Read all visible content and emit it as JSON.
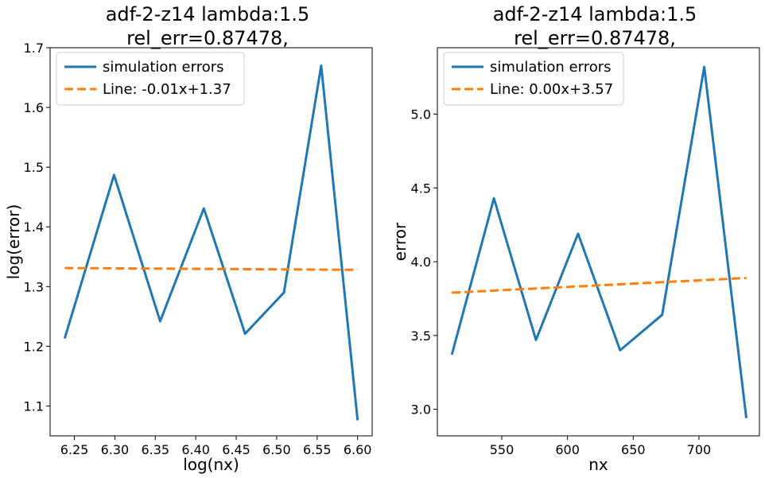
{
  "chart_data": [
    {
      "type": "line",
      "title": "adf-2-z14 lambda:1.5\nrel_err=0.87478,",
      "xlabel": "log(nx)",
      "ylabel": "log(error)",
      "xlim": [
        6.22,
        6.618
      ],
      "ylim": [
        1.05,
        1.7
      ],
      "xticks": [
        "6.25",
        "6.30",
        "6.35",
        "6.40",
        "6.45",
        "6.50",
        "6.55",
        "6.60"
      ],
      "yticks": [
        "1.1",
        "1.2",
        "1.3",
        "1.4",
        "1.5",
        "1.6",
        "1.7"
      ],
      "legend_position": "upper-left",
      "series": [
        {
          "name": "simulation errors",
          "color": "#1f77b4",
          "style": "solid",
          "x": [
            6.238,
            6.299,
            6.356,
            6.41,
            6.461,
            6.509,
            6.555,
            6.6
          ],
          "y": [
            1.213,
            1.487,
            1.242,
            1.431,
            1.221,
            1.29,
            1.67,
            1.076
          ]
        },
        {
          "name": "Line: -0.01x+1.37",
          "color": "#ff7f0e",
          "style": "dashed",
          "x": [
            6.238,
            6.6
          ],
          "y": [
            1.331,
            1.328
          ]
        }
      ]
    },
    {
      "type": "line",
      "title": "adf-2-z14 lambda:1.5\nrel_err=0.87478,",
      "xlabel": "nx",
      "ylabel": "error",
      "xlim": [
        501,
        746
      ],
      "ylim": [
        2.82,
        5.45
      ],
      "xticks": [
        "550",
        "600",
        "650",
        "700"
      ],
      "yticks": [
        "3.0",
        "3.5",
        "4.0",
        "4.5",
        "5.0"
      ],
      "legend_position": "upper-left",
      "series": [
        {
          "name": "simulation errors",
          "color": "#1f77b4",
          "style": "solid",
          "x": [
            512,
            544,
            576,
            608,
            640,
            672,
            704,
            736
          ],
          "y": [
            3.37,
            4.43,
            3.47,
            4.19,
            3.4,
            3.64,
            5.32,
            2.94
          ]
        },
        {
          "name": "Line: 0.00x+3.57",
          "color": "#ff7f0e",
          "style": "dashed",
          "x": [
            512,
            736
          ],
          "y": [
            3.79,
            3.89
          ]
        }
      ]
    }
  ]
}
